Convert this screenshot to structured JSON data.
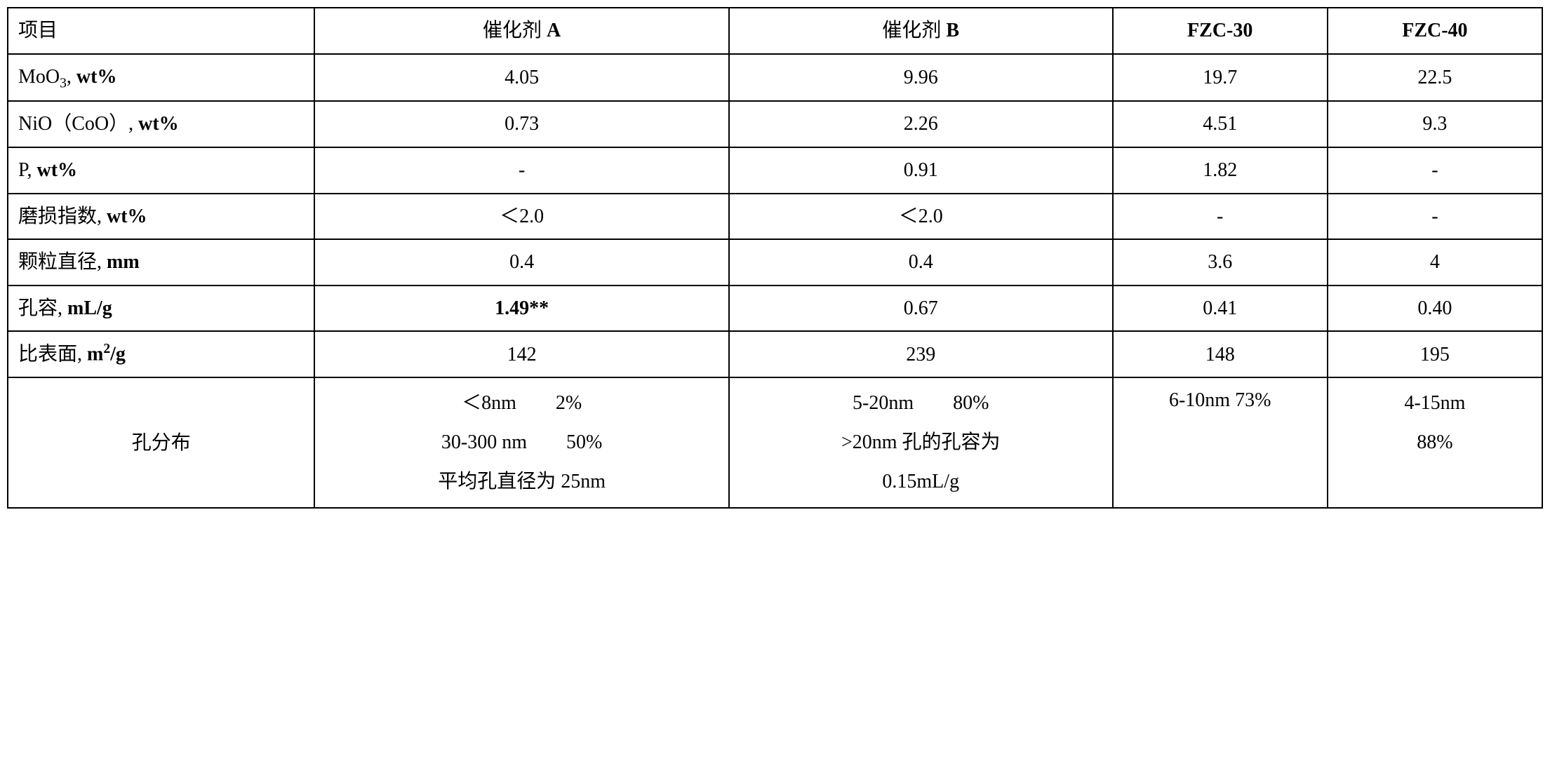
{
  "table": {
    "headers": {
      "col1": "项目",
      "col2_prefix": "催化剂 ",
      "col2_suffix": "A",
      "col3_prefix": "催化剂 ",
      "col3_suffix": "B",
      "col4": "FZC-30",
      "col5": "FZC-40"
    },
    "rows": {
      "moo3": {
        "label_pre": "MoO",
        "label_sub": "3",
        "label_mid": ", ",
        "label_bold": "wt%",
        "catA": "4.05",
        "catB": "9.96",
        "fzc30": "19.7",
        "fzc40": "22.5"
      },
      "nio": {
        "label_pre": "NiO（CoO）, ",
        "label_bold": "wt%",
        "catA": "0.73",
        "catB": "2.26",
        "fzc30": "4.51",
        "fzc40": "9.3"
      },
      "p": {
        "label_pre": "P, ",
        "label_bold": "wt%",
        "catA": "-",
        "catB": "0.91",
        "fzc30": "1.82",
        "fzc40": "-"
      },
      "wear": {
        "label_pre": "磨损指数, ",
        "label_bold": "wt%",
        "catA": "＜2.0",
        "catB": "＜2.0",
        "fzc30": "-",
        "fzc40": "-"
      },
      "diameter": {
        "label_pre": "颗粒直径, ",
        "label_bold": "mm",
        "catA": "0.4",
        "catB": "0.4",
        "fzc30": "3.6",
        "fzc40": "4"
      },
      "porevol": {
        "label_pre": "孔容, ",
        "label_bold": "mL/g",
        "catA": "1.49**",
        "catB": "0.67",
        "fzc30": "0.41",
        "fzc40": "0.40"
      },
      "surface": {
        "label_pre": "比表面, ",
        "label_bold_pre": "m",
        "label_sup": "2",
        "label_bold_post": "/g",
        "catA": "142",
        "catB": "239",
        "fzc30": "148",
        "fzc40": "195"
      },
      "poredist": {
        "label": "孔分布",
        "catA_l1": "＜8nm　　2%",
        "catA_l2": "30-300 nm　　50%",
        "catA_l3": "平均孔直径为 25nm",
        "catB_l1": "5-20nm　　80%",
        "catB_l2": ">20nm 孔的孔容为",
        "catB_l3": "0.15mL/g",
        "fzc30": "6-10nm 73%",
        "fzc40_l1": "4-15nm",
        "fzc40_l2": "88%"
      }
    }
  }
}
